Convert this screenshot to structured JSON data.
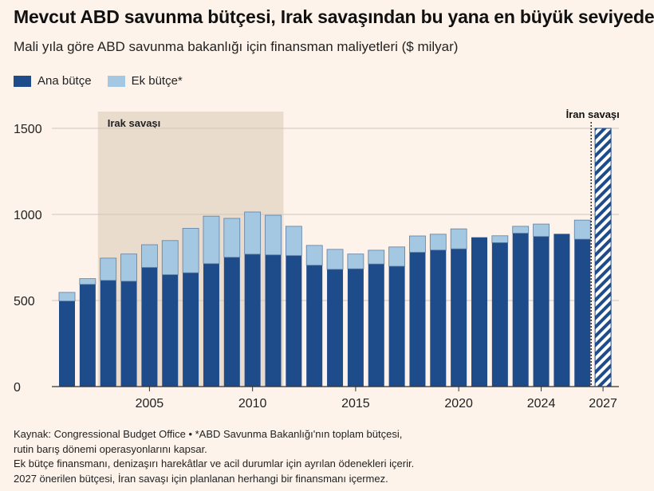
{
  "title": "Mevcut ABD savunma bütçesi, Irak savaşından bu yana en büyük seviyede",
  "subtitle": "Mali yıla göre ABD savunma bakanlığı için finansman maliyetleri ($ milyar)",
  "legend": [
    {
      "name": "Ana bütçe",
      "color": "#1e4b8a"
    },
    {
      "name": "Ek bütçe*",
      "color": "#a4c8e2"
    }
  ],
  "footnotes": [
    "Kaynak: Congressional Budget Office • *ABD Savunma Bakanlığı'nın toplam bütçesi,",
    "rutin barış dönemi operasyonlarını kapsar.",
    "Ek bütçe finansmanı, denizaşırı harekâtlar ve acil durumlar için ayrılan ödenekleri içerir.",
    "2027 önerilen bütçesi, İran savaşı için planlanan herhangi bir finansmanı içermez."
  ],
  "colors": {
    "background": "#fdf3ea",
    "base": "#1e4b8a",
    "supplemental": "#a4c8e2",
    "iraq_shade": "#eadccd",
    "grid": "#d0c6bc"
  },
  "chart_data": {
    "type": "bar",
    "stacked": true,
    "categories": [
      2001,
      2002,
      2003,
      2004,
      2005,
      2006,
      2007,
      2008,
      2009,
      2010,
      2011,
      2012,
      2013,
      2014,
      2015,
      2016,
      2017,
      2018,
      2019,
      2020,
      2021,
      2022,
      2023,
      2024,
      2025,
      2026,
      2027
    ],
    "series": [
      {
        "name": "Ana bütçe",
        "values": [
          497,
          594,
          617,
          612,
          692,
          650,
          661,
          714,
          751,
          769,
          765,
          761,
          705,
          681,
          684,
          712,
          699,
          780,
          793,
          800,
          867,
          836,
          891,
          872,
          887,
          856,
          1500
        ]
      },
      {
        "name": "Ek bütçe*",
        "values": [
          50,
          33,
          129,
          158,
          132,
          198,
          258,
          276,
          226,
          245,
          230,
          170,
          115,
          116,
          86,
          80,
          112,
          95,
          92,
          116,
          0,
          40,
          40,
          72,
          0,
          111,
          0
        ]
      }
    ],
    "projected_years": [
      2027
    ],
    "x_tick_labels": [
      "2005",
      "2010",
      "2015",
      "2020",
      "2024",
      "2027"
    ],
    "y_ticks": [
      0,
      500,
      1000,
      1500
    ],
    "ylim": [
      0,
      1500
    ],
    "grid": true,
    "annotations": [
      {
        "label": "Irak savaşı",
        "type": "shaded_period",
        "start": 2003,
        "end": 2011
      },
      {
        "label": "İran savaşı",
        "type": "dotted_line",
        "at": 2026
      }
    ]
  }
}
